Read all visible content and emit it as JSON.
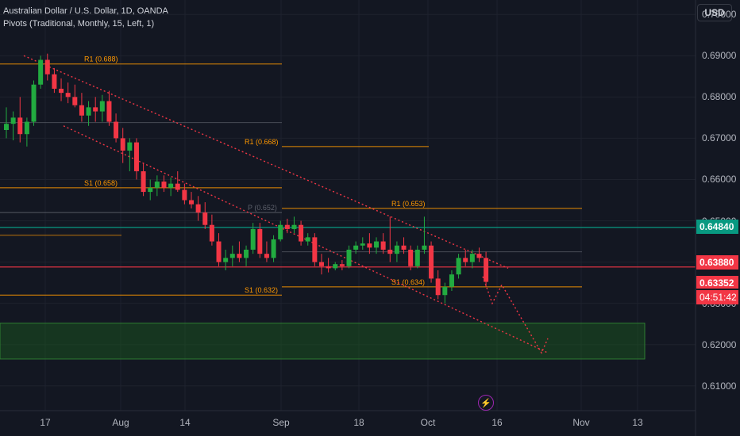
{
  "header": {
    "title": "Australian Dollar / U.S. Dollar, 1D, OANDA",
    "indicator": "Pivots (Traditional, Monthly, 15, Left, 1)"
  },
  "currency_button": "USD",
  "price_tags": {
    "green": "0.64840",
    "red": "0.63880",
    "last": "0.63352",
    "countdown": "04:51:42"
  },
  "colors": {
    "background": "#131722",
    "up": "#089981",
    "up_candle": "#22ab40",
    "down": "#f23645",
    "pivot": "#ff9800",
    "support_zone": "#1b5e20",
    "trendline": "#f23645"
  },
  "event_icon": "lightning-icon",
  "chart_data": {
    "type": "candlestick",
    "y_ticks": [
      "0.70000",
      "0.69000",
      "0.68000",
      "0.67000",
      "0.66000",
      "0.65000",
      "0.64000",
      "0.63000",
      "0.62000",
      "0.61000"
    ],
    "x_ticks": [
      "17",
      "Aug",
      "14",
      "Sep",
      "18",
      "Oct",
      "16",
      "Nov",
      "13"
    ],
    "ylim": [
      0.604,
      0.7035
    ],
    "pivot_levels": [
      {
        "label": "R1 (0.688)",
        "value": 0.688
      },
      {
        "label": "R1 (0.668)",
        "value": 0.668
      },
      {
        "label": "S1 (0.658)",
        "value": 0.658
      },
      {
        "label": "P (0.652)",
        "value": 0.652
      },
      {
        "label": "R1 (0.653)",
        "value": 0.653
      },
      {
        "label": "S1 (0.634)",
        "value": 0.634
      },
      {
        "label": "S1 (0.632)",
        "value": 0.632
      }
    ],
    "horizontal_lines": [
      {
        "value": 0.6484,
        "color": "#089981"
      },
      {
        "value": 0.6388,
        "color": "#f23645"
      }
    ],
    "support_zone": [
      0.6165,
      0.6252
    ],
    "candles": [
      [
        0.672,
        0.6775,
        0.67,
        0.6735
      ],
      [
        0.6735,
        0.6765,
        0.6695,
        0.675
      ],
      [
        0.675,
        0.68,
        0.669,
        0.671
      ],
      [
        0.671,
        0.675,
        0.668,
        0.674
      ],
      [
        0.674,
        0.684,
        0.673,
        0.683
      ],
      [
        0.683,
        0.69,
        0.682,
        0.689
      ],
      [
        0.689,
        0.6905,
        0.684,
        0.6855
      ],
      [
        0.6855,
        0.687,
        0.681,
        0.682
      ],
      [
        0.682,
        0.6845,
        0.679,
        0.681
      ],
      [
        0.681,
        0.6835,
        0.6785,
        0.68
      ],
      [
        0.68,
        0.683,
        0.6775,
        0.678
      ],
      [
        0.678,
        0.681,
        0.674,
        0.6755
      ],
      [
        0.6755,
        0.679,
        0.673,
        0.6775
      ],
      [
        0.6775,
        0.68,
        0.674,
        0.6765
      ],
      [
        0.6765,
        0.6805,
        0.674,
        0.679
      ],
      [
        0.679,
        0.6815,
        0.673,
        0.674
      ],
      [
        0.674,
        0.676,
        0.669,
        0.67
      ],
      [
        0.67,
        0.6725,
        0.664,
        0.667
      ],
      [
        0.667,
        0.67,
        0.662,
        0.669
      ],
      [
        0.669,
        0.67,
        0.66,
        0.662
      ],
      [
        0.662,
        0.664,
        0.656,
        0.657
      ],
      [
        0.657,
        0.66,
        0.655,
        0.658
      ],
      [
        0.658,
        0.661,
        0.656,
        0.6595
      ],
      [
        0.6595,
        0.661,
        0.657,
        0.658
      ],
      [
        0.658,
        0.6605,
        0.656,
        0.659
      ],
      [
        0.659,
        0.662,
        0.657,
        0.6575
      ],
      [
        0.6575,
        0.659,
        0.654,
        0.655
      ],
      [
        0.655,
        0.657,
        0.653,
        0.654
      ],
      [
        0.654,
        0.656,
        0.65,
        0.652
      ],
      [
        0.652,
        0.6545,
        0.648,
        0.649
      ],
      [
        0.649,
        0.6515,
        0.644,
        0.645
      ],
      [
        0.645,
        0.647,
        0.639,
        0.64
      ],
      [
        0.64,
        0.643,
        0.638,
        0.641
      ],
      [
        0.641,
        0.644,
        0.639,
        0.642
      ],
      [
        0.642,
        0.645,
        0.64,
        0.641
      ],
      [
        0.641,
        0.644,
        0.639,
        0.643
      ],
      [
        0.643,
        0.6495,
        0.642,
        0.648
      ],
      [
        0.648,
        0.6495,
        0.641,
        0.642
      ],
      [
        0.642,
        0.645,
        0.64,
        0.641
      ],
      [
        0.641,
        0.6465,
        0.64,
        0.6455
      ],
      [
        0.6455,
        0.65,
        0.645,
        0.649
      ],
      [
        0.649,
        0.6505,
        0.647,
        0.648
      ],
      [
        0.648,
        0.651,
        0.647,
        0.649
      ],
      [
        0.649,
        0.65,
        0.644,
        0.645
      ],
      [
        0.645,
        0.647,
        0.644,
        0.646
      ],
      [
        0.646,
        0.647,
        0.639,
        0.64
      ],
      [
        0.64,
        0.642,
        0.637,
        0.639
      ],
      [
        0.639,
        0.641,
        0.6375,
        0.6385
      ],
      [
        0.6385,
        0.64,
        0.638,
        0.6395
      ],
      [
        0.6395,
        0.6405,
        0.638,
        0.639
      ],
      [
        0.639,
        0.644,
        0.6385,
        0.643
      ],
      [
        0.643,
        0.645,
        0.642,
        0.644
      ],
      [
        0.644,
        0.646,
        0.643,
        0.6445
      ],
      [
        0.6445,
        0.647,
        0.642,
        0.6435
      ],
      [
        0.6435,
        0.646,
        0.642,
        0.645
      ],
      [
        0.645,
        0.647,
        0.642,
        0.643
      ],
      [
        0.643,
        0.651,
        0.64,
        0.642
      ],
      [
        0.642,
        0.645,
        0.64,
        0.644
      ],
      [
        0.644,
        0.646,
        0.642,
        0.643
      ],
      [
        0.643,
        0.644,
        0.638,
        0.639
      ],
      [
        0.639,
        0.644,
        0.6385,
        0.643
      ],
      [
        0.643,
        0.651,
        0.642,
        0.644
      ],
      [
        0.644,
        0.645,
        0.635,
        0.636
      ],
      [
        0.636,
        0.638,
        0.631,
        0.632
      ],
      [
        0.632,
        0.635,
        0.63,
        0.634
      ],
      [
        0.634,
        0.638,
        0.633,
        0.637
      ],
      [
        0.637,
        0.642,
        0.636,
        0.641
      ],
      [
        0.641,
        0.643,
        0.639,
        0.64
      ],
      [
        0.64,
        0.643,
        0.6385,
        0.642
      ],
      [
        0.642,
        0.6435,
        0.64,
        0.641
      ],
      [
        0.641,
        0.6425,
        0.634,
        0.6352
      ]
    ]
  }
}
